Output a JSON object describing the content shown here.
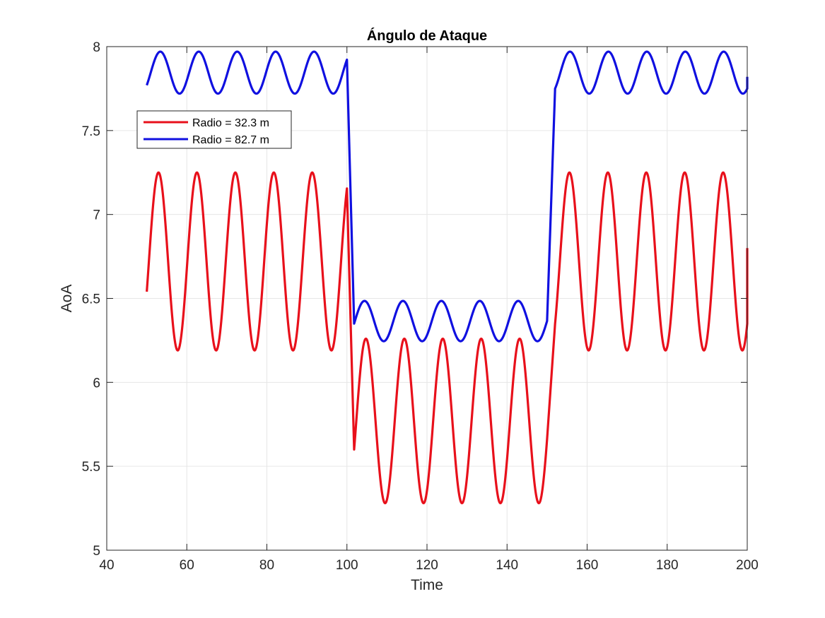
{
  "chart_data": {
    "type": "line",
    "title": "Ángulo de Ataque",
    "xlabel": "Time",
    "ylabel": "AoA",
    "xlim": [
      40,
      200
    ],
    "ylim": [
      5,
      8
    ],
    "xticks": [
      "40",
      "60",
      "80",
      "100",
      "120",
      "140",
      "160",
      "180",
      "200"
    ],
    "yticks": [
      "5",
      "5.5",
      "6",
      "6.5",
      "7",
      "7.5",
      "8"
    ],
    "grid": true,
    "legend_position": "upper-left",
    "series": [
      {
        "name": "Radio = 32.3 m",
        "color": "#e8101b",
        "segments": [
          {
            "x_start": 50,
            "x_end": 100,
            "mean": 6.72,
            "amplitude": 0.53,
            "period": 9.6,
            "start_value": 6.54
          },
          {
            "x_start": 101.8,
            "x_end": 150,
            "mean": 5.77,
            "amplitude": 0.49,
            "period": 9.6,
            "start_value": 5.6
          },
          {
            "x_start": 152,
            "x_end": 200,
            "mean": 6.72,
            "amplitude": 0.53,
            "period": 9.6,
            "start_value": 6.35
          }
        ],
        "end_value": 6.8
      },
      {
        "name": "Radio = 82.7 m",
        "color": "#1010e0",
        "segments": [
          {
            "x_start": 50,
            "x_end": 100,
            "mean": 7.845,
            "amplitude": 0.125,
            "period": 9.6,
            "start_value": 7.77
          },
          {
            "x_start": 101.8,
            "x_end": 150,
            "mean": 6.365,
            "amplitude": 0.12,
            "period": 9.6,
            "start_value": 6.35
          },
          {
            "x_start": 152,
            "x_end": 200,
            "mean": 7.845,
            "amplitude": 0.125,
            "period": 9.6,
            "start_value": 7.75
          }
        ],
        "end_value": 7.82
      }
    ]
  }
}
